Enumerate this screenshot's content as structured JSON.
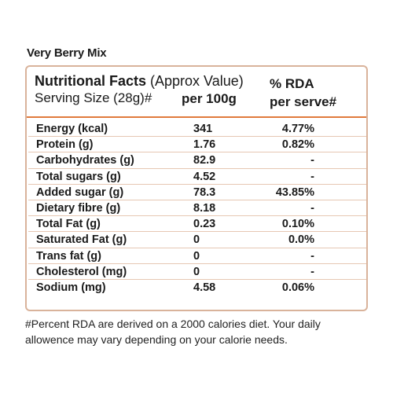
{
  "product_name": "Very Berry Mix",
  "header": {
    "title_bold": "Nutritional Facts",
    "title_rest": " (Approx Value)",
    "serving_size": "Serving Size (28g)#",
    "per_100g": "per 100g",
    "rda_line1": "% RDA",
    "rda_line2": "per serve#"
  },
  "rows": [
    {
      "name": "Energy (kcal)",
      "per_100g": "341",
      "rda": "4.77%"
    },
    {
      "name": "Protein (g)",
      "per_100g": "1.76",
      "rda": "0.82%"
    },
    {
      "name": "Carbohydrates (g)",
      "per_100g": "82.9",
      "rda": "-"
    },
    {
      "name": "Total sugars (g)",
      "per_100g": "4.52",
      "rda": "-"
    },
    {
      "name": "Added sugar (g)",
      "per_100g": "78.3",
      "rda": "43.85%"
    },
    {
      "name": "Dietary fibre (g)",
      "per_100g": "8.18",
      "rda": "-"
    },
    {
      "name": "Total Fat (g)",
      "per_100g": "0.23",
      "rda": "0.10%"
    },
    {
      "name": "Saturated Fat (g)",
      "per_100g": "0",
      "rda": "0.0%"
    },
    {
      "name": "Trans fat (g)",
      "per_100g": "0",
      "rda": "-"
    },
    {
      "name": "Cholesterol (mg)",
      "per_100g": "0",
      "rda": "-"
    },
    {
      "name": "Sodium (mg)",
      "per_100g": "4.58",
      "rda": "0.06%"
    }
  ],
  "footnote": "#Percent RDA are derived on a 2000 calories diet. Your daily allowence may vary depending on your calorie needs.",
  "colors": {
    "accent": "#e07a3c",
    "border": "#d9b39b"
  }
}
